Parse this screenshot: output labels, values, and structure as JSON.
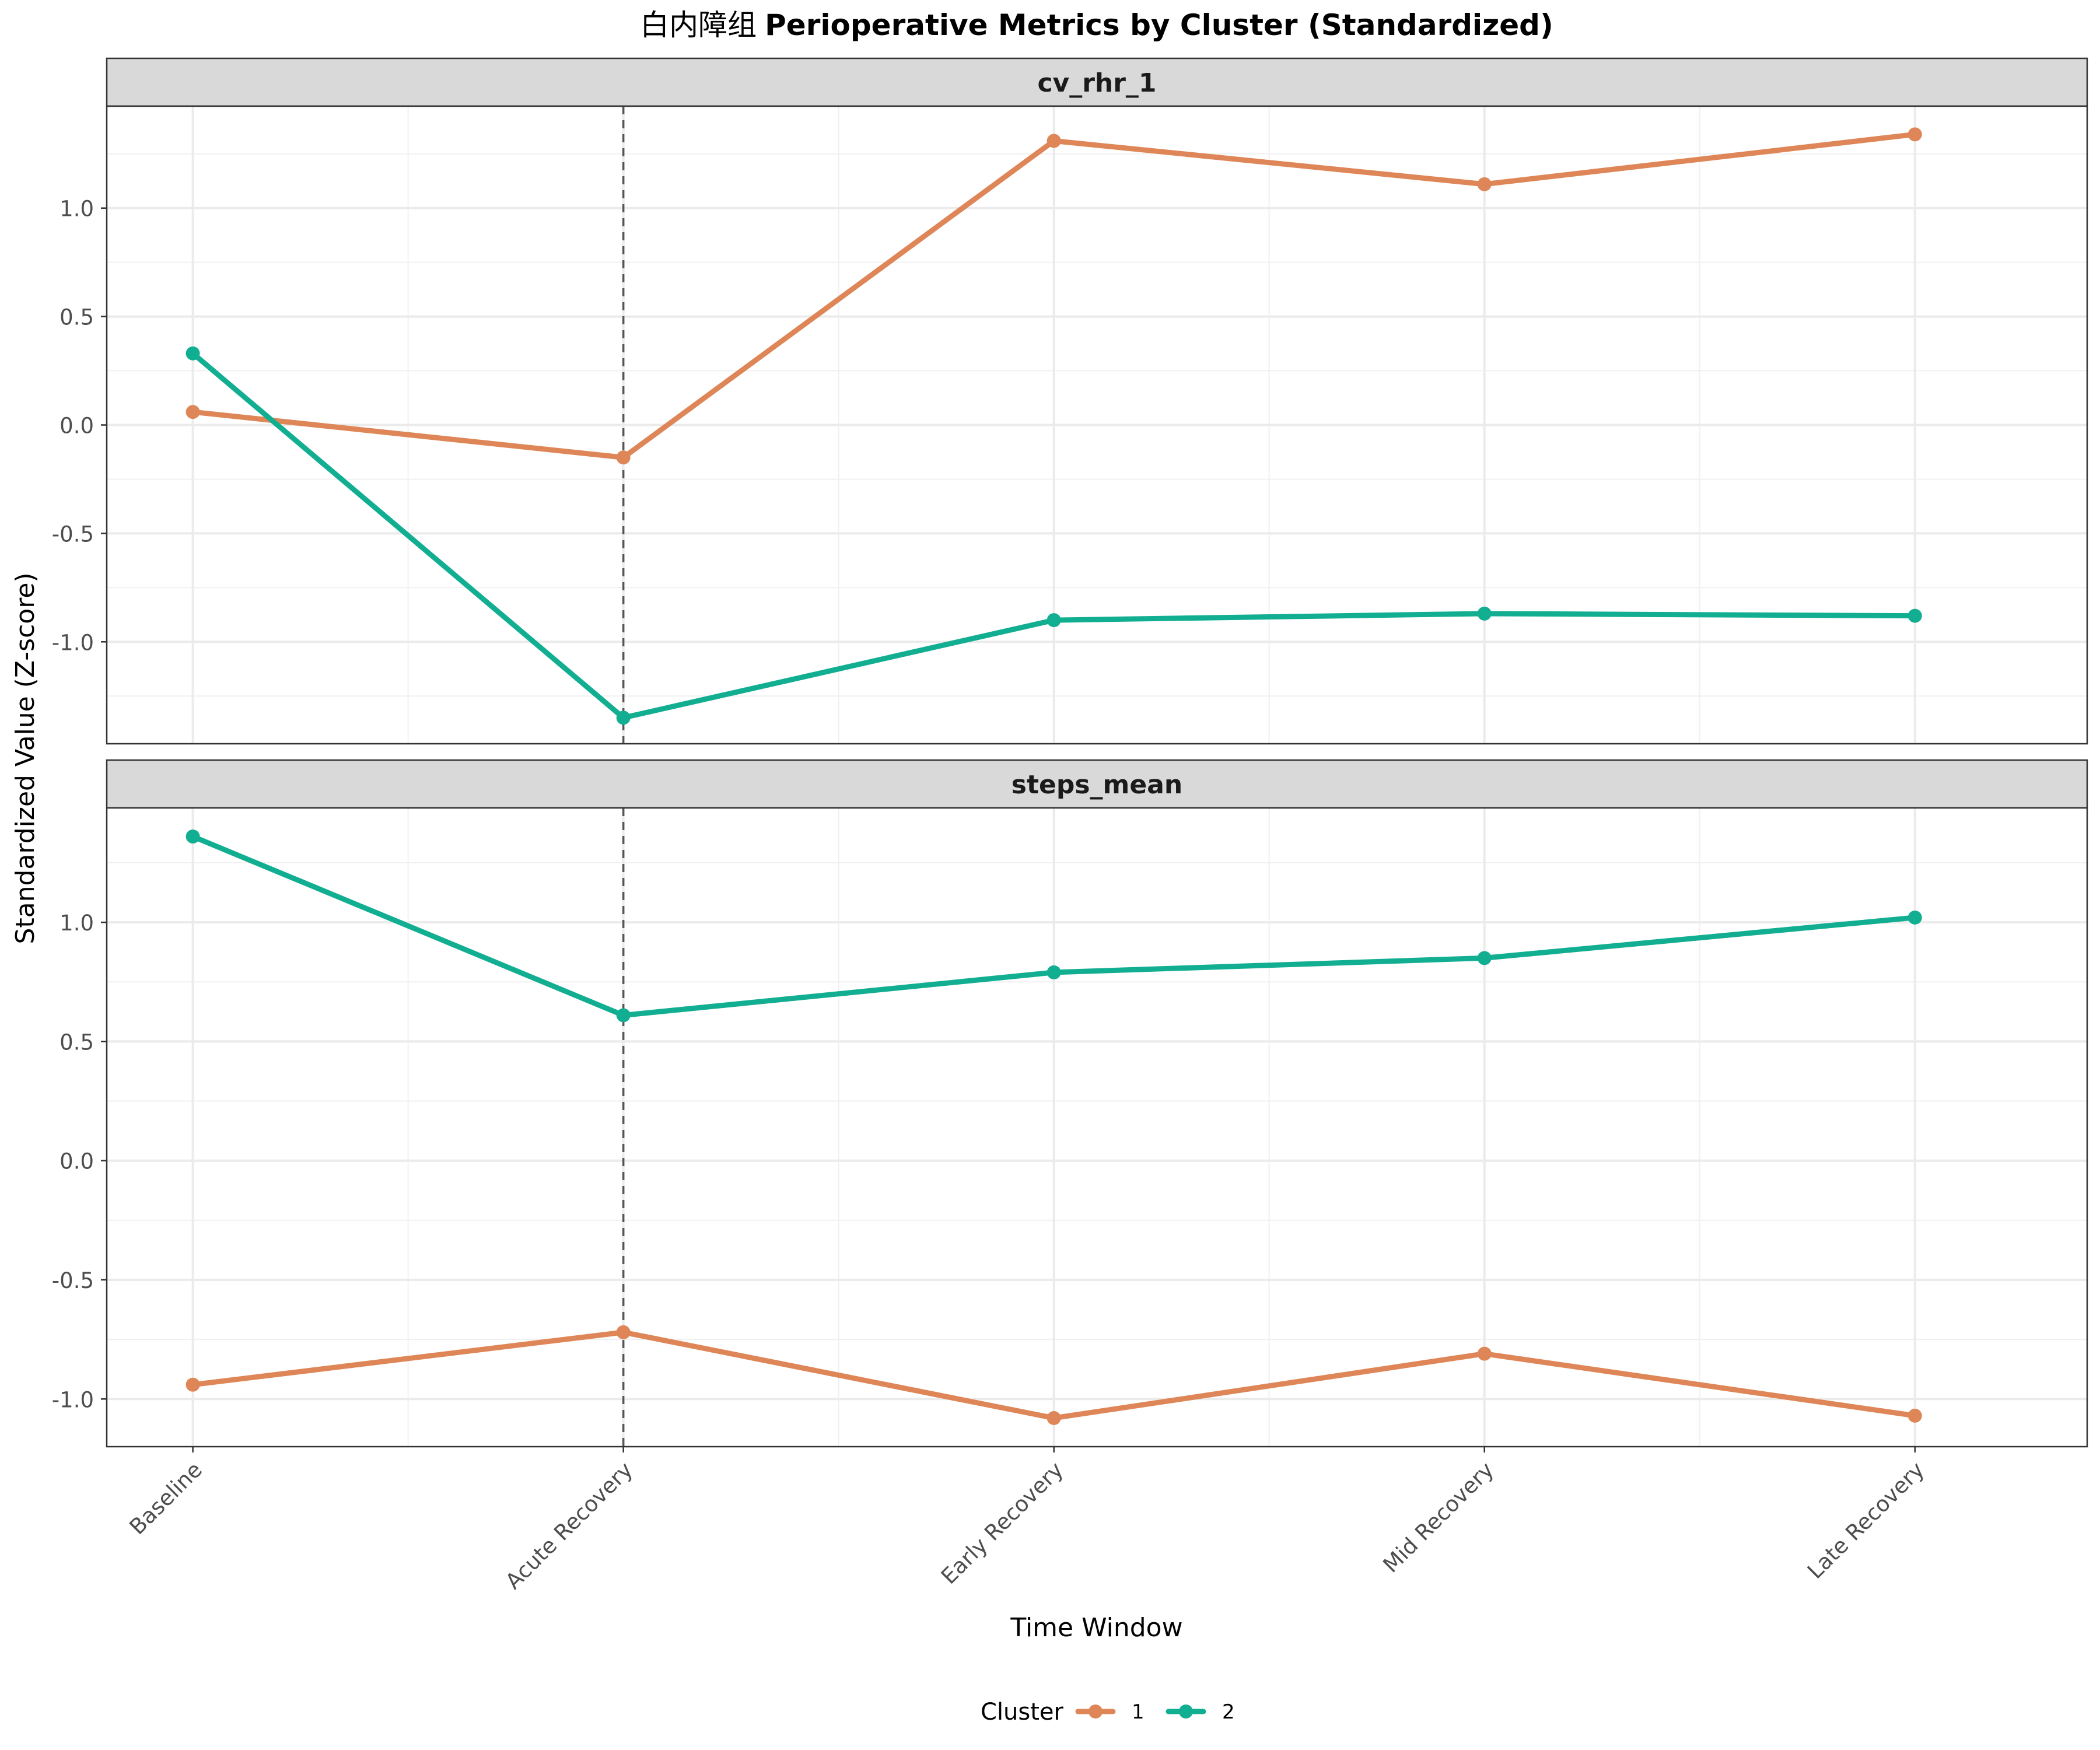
{
  "chart_data": {
    "type": "line",
    "title_prefix": "白内障组",
    "title": "Perioperative Metrics by Cluster (Standardized)",
    "xlabel": "Time Window",
    "ylabel": "Standardized Value (Z-score)",
    "categories": [
      "Baseline",
      "Acute Recovery",
      "Early Recovery",
      "Mid Recovery",
      "Late Recovery"
    ],
    "vline_category": "Acute Recovery",
    "grid": true,
    "legend": {
      "title": "Cluster",
      "position": "bottom",
      "entries": [
        {
          "label": "1",
          "color": "#DE8657"
        },
        {
          "label": "2",
          "color": "#12AE91"
        }
      ]
    },
    "panels": [
      {
        "name": "cv_rhr_1",
        "ylim": [
          -1.47,
          1.47
        ],
        "yticks": [
          -1.0,
          -0.5,
          0.0,
          0.5,
          1.0
        ],
        "ytick_labels": [
          "-1.0",
          "-0.5",
          "0.0",
          "0.5",
          "1.0"
        ],
        "series": [
          {
            "name": "1",
            "color": "#DE8657",
            "values": [
              0.06,
              -0.15,
              1.31,
              1.11,
              1.34
            ]
          },
          {
            "name": "2",
            "color": "#12AE91",
            "values": [
              0.33,
              -1.35,
              -0.9,
              -0.87,
              -0.88
            ]
          }
        ]
      },
      {
        "name": "steps_mean",
        "ylim": [
          -1.2,
          1.48
        ],
        "yticks": [
          -1.0,
          -0.5,
          0.0,
          0.5,
          1.0
        ],
        "ytick_labels": [
          "-1.0",
          "-0.5",
          "0.0",
          "0.5",
          "1.0"
        ],
        "series": [
          {
            "name": "1",
            "color": "#DE8657",
            "values": [
              -0.94,
              -0.72,
              -1.08,
              -0.81,
              -1.07
            ]
          },
          {
            "name": "2",
            "color": "#12AE91",
            "values": [
              1.36,
              0.61,
              0.79,
              0.85,
              1.02
            ]
          }
        ]
      }
    ]
  }
}
